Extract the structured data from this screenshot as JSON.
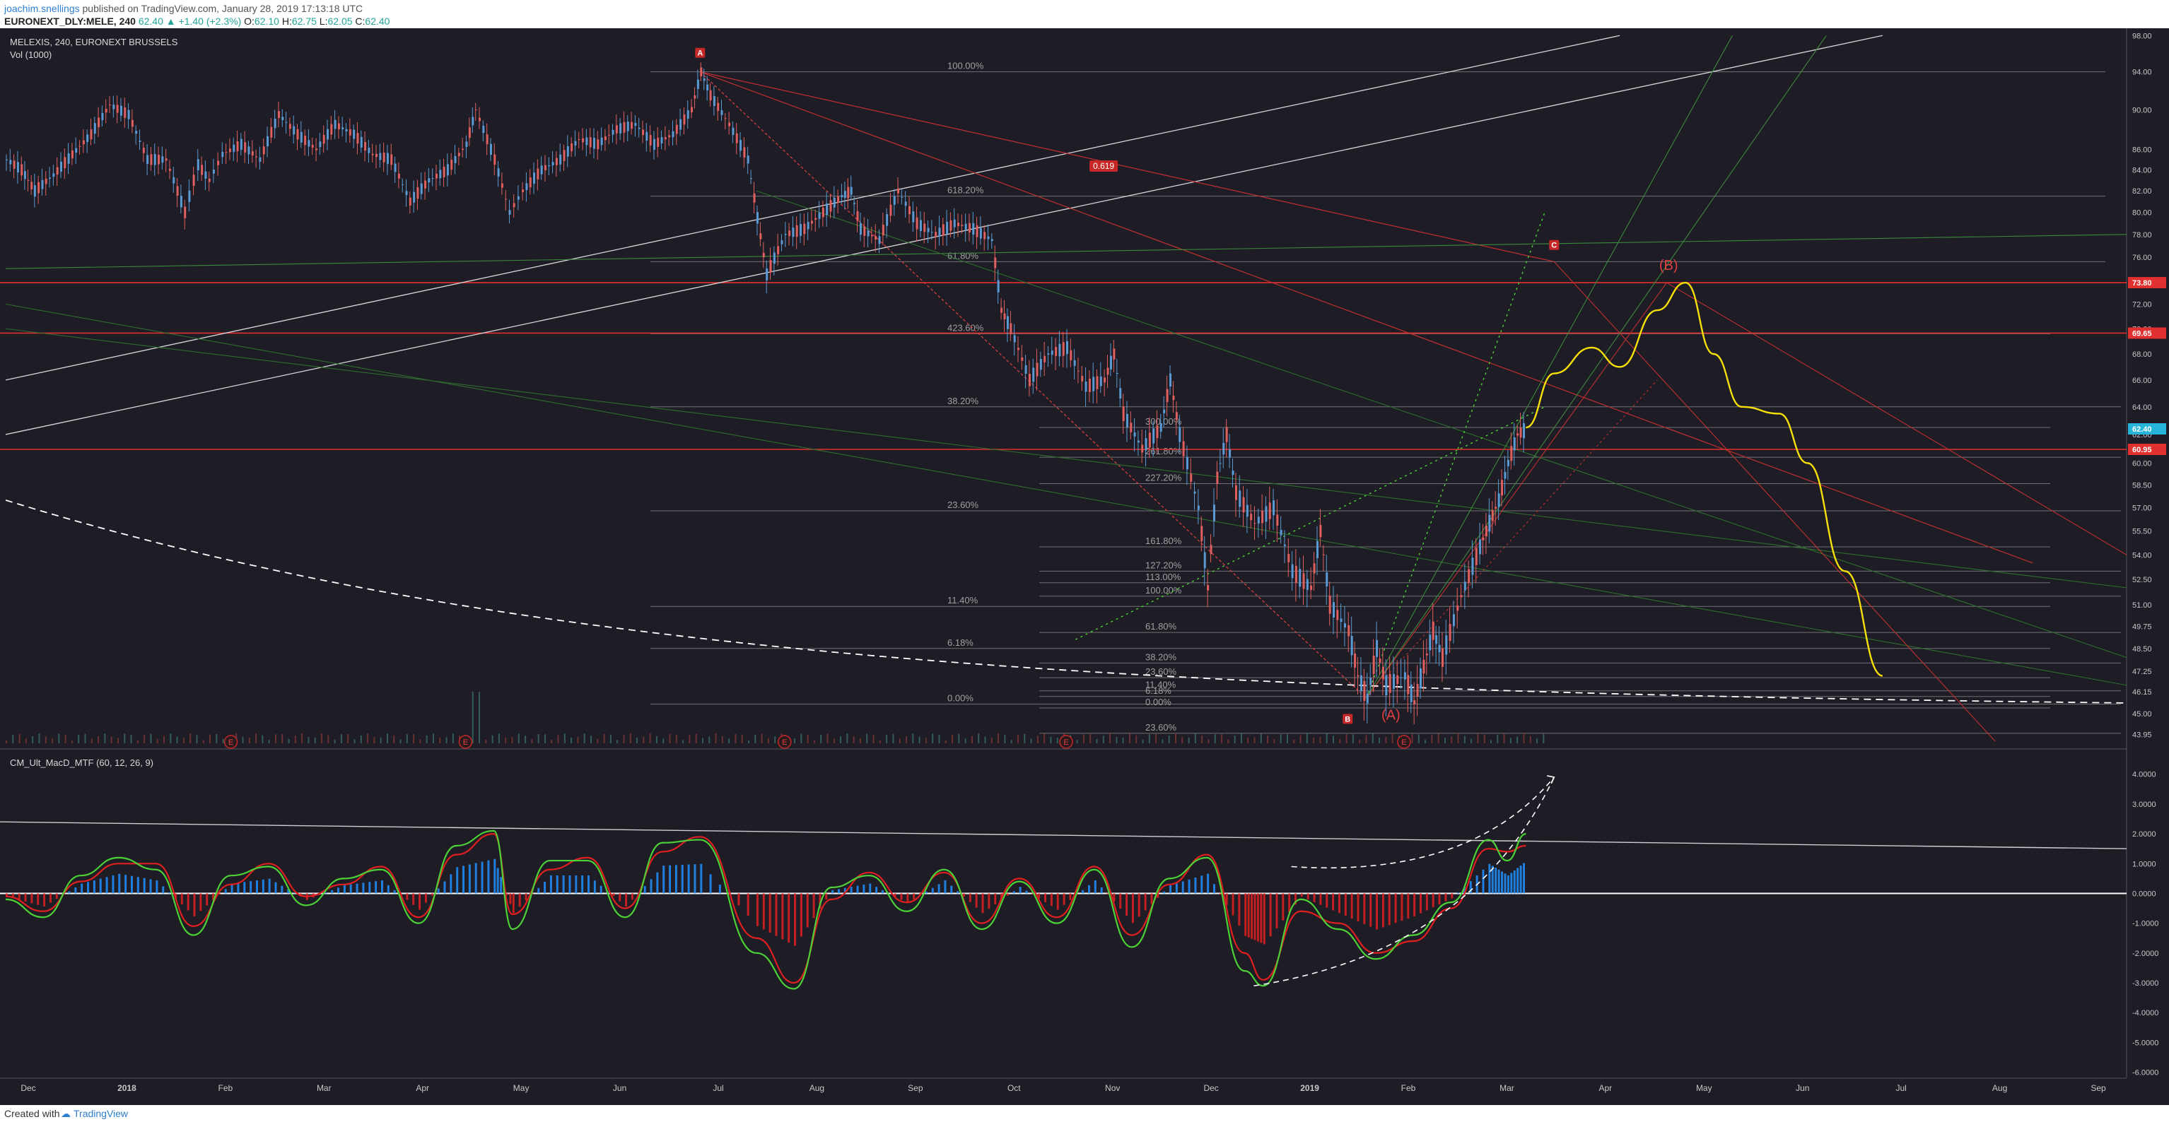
{
  "header": {
    "user": "joachim.snellings",
    "published": "published on TradingView.com, January 28, 2019 17:13:18 UTC",
    "symbol": "EURONEXT_DLY:MELE, 240",
    "last": "62.40",
    "change_arrow": "▲",
    "change": "+1.40 (+2.3%)",
    "o_label": "O:",
    "o": "62.10",
    "h_label": "H:",
    "h": "62.75",
    "l_label": "L:",
    "l": "62.05",
    "c_label": "C:",
    "c": "62.40"
  },
  "footer": {
    "created_with": "Created with",
    "brand": "TradingView"
  },
  "colors": {
    "background": "#1e1c25",
    "up": "#5b9bd5",
    "down": "#e06060",
    "grid_line": "#b8b8b8",
    "fib_label": "#a0a0a0",
    "red_level": "#e03030",
    "yellow_path": "#f5e00a",
    "green_fan": "#3c8a3c",
    "macd_green": "#4cd137",
    "macd_red": "#e02020",
    "hist_pos": "#1e90ff",
    "hist_neg": "#e02020"
  },
  "chart_data": [
    {
      "type": "candlestick",
      "title": "MELEXIS, 240, EURONEXT BRUSSELS",
      "subtitle": "Vol (1000)",
      "xlabel": "",
      "ylabel": "",
      "x_ticks": [
        "Dec",
        "2018",
        "Feb",
        "Mar",
        "Apr",
        "May",
        "Jun",
        "Jul",
        "Aug",
        "Sep",
        "Oct",
        "Nov",
        "Dec",
        "2019",
        "Feb",
        "Mar",
        "Apr",
        "May",
        "Jun",
        "Jul",
        "Aug",
        "Sep"
      ],
      "y_ticks": [
        "98.00",
        "94.00",
        "90.00",
        "86.00",
        "84.00",
        "82.00",
        "80.00",
        "78.00",
        "76.00",
        "74.00",
        "72.00",
        "70.00",
        "68.00",
        "66.00",
        "64.00",
        "62.00",
        "60.00",
        "58.50",
        "57.00",
        "55.50",
        "54.00",
        "52.50",
        "51.00",
        "49.75",
        "48.50",
        "47.25",
        "46.15",
        "45.00",
        "43.95"
      ],
      "ylim": [
        43.5,
        98.5
      ],
      "scale": "log",
      "price_path": [
        [
          0.0,
          85.0
        ],
        [
          0.8,
          84.0
        ],
        [
          1.5,
          82.0
        ],
        [
          2.5,
          83.5
        ],
        [
          3.5,
          85.5
        ],
        [
          4.5,
          87.5
        ],
        [
          5.5,
          90.5
        ],
        [
          6.5,
          89.5
        ],
        [
          7.5,
          85.0
        ],
        [
          8.5,
          85.0
        ],
        [
          9.5,
          80.0
        ],
        [
          10.2,
          84.5
        ],
        [
          10.8,
          83.0
        ],
        [
          11.5,
          85.5
        ],
        [
          12.5,
          86.5
        ],
        [
          13.5,
          85.0
        ],
        [
          14.5,
          89.5
        ],
        [
          15.5,
          87.5
        ],
        [
          16.5,
          86.0
        ],
        [
          17.5,
          88.5
        ],
        [
          18.5,
          87.5
        ],
        [
          19.5,
          85.5
        ],
        [
          20.5,
          85.0
        ],
        [
          21.5,
          81.0
        ],
        [
          22.5,
          83.0
        ],
        [
          23.5,
          84.0
        ],
        [
          24.5,
          86.5
        ],
        [
          25.0,
          90.0
        ],
        [
          26.0,
          85.0
        ],
        [
          26.8,
          80.0
        ],
        [
          27.5,
          82.0
        ],
        [
          28.5,
          84.0
        ],
        [
          29.5,
          85.0
        ],
        [
          30.5,
          87.0
        ],
        [
          31.5,
          86.5
        ],
        [
          32.5,
          88.0
        ],
        [
          33.5,
          88.5
        ],
        [
          34.5,
          86.5
        ],
        [
          35.5,
          87.5
        ],
        [
          36.5,
          90.0
        ],
        [
          37.0,
          94.0
        ],
        [
          37.5,
          91.5
        ],
        [
          38.5,
          88.5
        ],
        [
          39.5,
          85.0
        ],
        [
          40.0,
          79.5
        ],
        [
          40.5,
          74.5
        ],
        [
          41.5,
          78.0
        ],
        [
          42.5,
          78.5
        ],
        [
          43.5,
          80.0
        ],
        [
          44.5,
          81.5
        ],
        [
          45.0,
          82.0
        ],
        [
          45.5,
          78.5
        ],
        [
          46.5,
          77.5
        ],
        [
          47.5,
          82.0
        ],
        [
          48.5,
          79.0
        ],
        [
          49.5,
          78.0
        ],
        [
          50.5,
          79.0
        ],
        [
          51.5,
          78.5
        ],
        [
          52.5,
          77.5
        ],
        [
          53.0,
          71.5
        ],
        [
          53.5,
          70.0
        ],
        [
          54.5,
          66.0
        ],
        [
          55.5,
          68.0
        ],
        [
          56.5,
          68.5
        ],
        [
          57.5,
          65.5
        ],
        [
          58.5,
          66.0
        ],
        [
          59.0,
          68.0
        ],
        [
          59.5,
          63.5
        ],
        [
          60.5,
          61.0
        ],
        [
          61.5,
          62.5
        ],
        [
          62.0,
          66.0
        ],
        [
          62.5,
          62.0
        ],
        [
          63.5,
          57.0
        ],
        [
          64.0,
          52.0
        ],
        [
          64.5,
          59.0
        ],
        [
          65.0,
          62.0
        ],
        [
          65.5,
          58.0
        ],
        [
          66.5,
          56.0
        ],
        [
          67.5,
          57.0
        ],
        [
          68.5,
          53.0
        ],
        [
          69.5,
          52.0
        ],
        [
          70.0,
          55.5
        ],
        [
          70.5,
          51.0
        ],
        [
          71.5,
          49.5
        ],
        [
          72.0,
          47.0
        ],
        [
          72.5,
          45.8
        ],
        [
          73.0,
          48.5
        ],
        [
          73.5,
          46.5
        ],
        [
          74.5,
          47.0
        ],
        [
          75.0,
          45.6
        ],
        [
          75.5,
          47.5
        ],
        [
          76.0,
          49.5
        ],
        [
          76.5,
          48.0
        ],
        [
          77.5,
          51.5
        ],
        [
          78.5,
          54.5
        ],
        [
          79.0,
          56.0
        ],
        [
          79.5,
          57.5
        ],
        [
          80.0,
          60.0
        ],
        [
          80.5,
          62.0
        ],
        [
          81.0,
          62.4
        ]
      ],
      "fib_levels": [
        {
          "label": "100.00%",
          "price": 94.0
        },
        {
          "label": "618.20%",
          "price": 81.5
        },
        {
          "label": "61.80%",
          "price": 75.6
        },
        {
          "label": "423.60%",
          "price": 69.6
        },
        {
          "label": "38.20%",
          "price": 64.0
        },
        {
          "label": "300.00%",
          "price": 62.5
        },
        {
          "label": "261.80%",
          "price": 60.4
        },
        {
          "label": "227.20%",
          "price": 58.6
        },
        {
          "label": "23.60%",
          "price": 56.8
        },
        {
          "label": "161.80%",
          "price": 54.5
        },
        {
          "label": "127.20%",
          "price": 53.0
        },
        {
          "label": "113.00%",
          "price": 52.3
        },
        {
          "label": "100.00%",
          "price": 51.5
        },
        {
          "label": "11.40%",
          "price": 50.9
        },
        {
          "label": "61.80%",
          "price": 49.4
        },
        {
          "label": "6.18%",
          "price": 48.5
        },
        {
          "label": "38.20%",
          "price": 47.7
        },
        {
          "label": "23.60%",
          "price": 46.9
        },
        {
          "label": "11.40%",
          "price": 46.2
        },
        {
          "label": "6.18%",
          "price": 45.9
        },
        {
          "label": "0.00%",
          "price": 45.5
        },
        {
          "label": "0.00%",
          "price": 45.3
        },
        {
          "label": "23.60%",
          "price": 44.0
        }
      ],
      "red_levels": [
        73.8,
        69.65,
        60.95
      ],
      "price_badges": [
        {
          "text": "73.80",
          "price": 73.8,
          "color": "#e03030"
        },
        {
          "text": "69.65",
          "price": 69.65,
          "color": "#e03030"
        },
        {
          "text": "62.40",
          "price": 62.4,
          "color": "#26b5d8"
        },
        {
          "text": "60.95",
          "price": 60.95,
          "color": "#e03030"
        }
      ],
      "annotations": [
        {
          "text": "A",
          "type": "marker"
        },
        {
          "text": "B",
          "type": "marker"
        },
        {
          "text": "C",
          "type": "marker"
        },
        {
          "text": "0.619",
          "type": "badge"
        },
        {
          "text": "(A)",
          "type": "wave"
        },
        {
          "text": "(B)",
          "type": "wave"
        },
        {
          "text": "E",
          "type": "event"
        }
      ],
      "projection_path": [
        [
          81.0,
          62.5
        ],
        [
          82.5,
          66.5
        ],
        [
          84.5,
          68.5
        ],
        [
          86.0,
          67.0
        ],
        [
          88.0,
          71.5
        ],
        [
          89.5,
          73.8
        ],
        [
          91.0,
          68.0
        ],
        [
          92.5,
          64.0
        ],
        [
          94.5,
          63.5
        ],
        [
          96.0,
          60.0
        ],
        [
          98.0,
          53.0
        ],
        [
          100.0,
          47.0
        ]
      ]
    },
    {
      "type": "line",
      "title": "CM_Ult_MacD_MTF (60, 12, 26, 9)",
      "xlabel": "",
      "ylabel": "",
      "y_ticks": [
        "4.0000",
        "3.0000",
        "2.0000",
        "1.0000",
        "0.0000",
        "-1.0000",
        "-2.0000",
        "-3.0000",
        "-4.0000",
        "-5.0000",
        "-6.0000"
      ],
      "ylim": [
        -6.2,
        4.8
      ],
      "series": [
        {
          "values": [
            [
              0,
              -0.2
            ],
            [
              2,
              -0.8
            ],
            [
              4,
              0.6
            ],
            [
              6,
              1.2
            ],
            [
              8,
              0.8
            ],
            [
              10,
              -1.4
            ],
            [
              12,
              0.6
            ],
            [
              14,
              0.9
            ],
            [
              16,
              -0.4
            ],
            [
              18,
              0.5
            ],
            [
              20,
              0.8
            ],
            [
              22,
              -1.0
            ],
            [
              24,
              1.6
            ],
            [
              26,
              2.1
            ],
            [
              27,
              -1.2
            ],
            [
              29,
              1.1
            ],
            [
              31,
              1.1
            ],
            [
              33,
              -0.8
            ],
            [
              35,
              1.7
            ],
            [
              37,
              1.8
            ],
            [
              40,
              -2.0
            ],
            [
              42,
              -3.2
            ],
            [
              44,
              0.2
            ],
            [
              46,
              0.6
            ],
            [
              48,
              -0.6
            ],
            [
              50,
              0.8
            ],
            [
              52,
              -1.2
            ],
            [
              54,
              0.4
            ],
            [
              56,
              -1.0
            ],
            [
              58,
              0.8
            ],
            [
              60,
              -1.8
            ],
            [
              62,
              0.5
            ],
            [
              64,
              1.2
            ],
            [
              66,
              -2.6
            ],
            [
              67,
              -3.1
            ],
            [
              69,
              -0.2
            ],
            [
              71,
              -1.2
            ],
            [
              73,
              -2.2
            ],
            [
              75,
              -1.4
            ],
            [
              77,
              -0.3
            ],
            [
              79,
              1.8
            ],
            [
              80,
              1.1
            ],
            [
              81,
              2.0
            ]
          ]
        },
        {
          "values": [
            [
              0,
              -0.1
            ],
            [
              2,
              -0.6
            ],
            [
              4,
              0.4
            ],
            [
              6,
              1.0
            ],
            [
              8,
              1.0
            ],
            [
              10,
              -1.1
            ],
            [
              12,
              0.3
            ],
            [
              14,
              1.0
            ],
            [
              16,
              -0.1
            ],
            [
              18,
              0.3
            ],
            [
              20,
              0.9
            ],
            [
              22,
              -0.8
            ],
            [
              24,
              1.3
            ],
            [
              26,
              2.0
            ],
            [
              27,
              -0.7
            ],
            [
              29,
              0.8
            ],
            [
              31,
              1.2
            ],
            [
              33,
              -0.5
            ],
            [
              35,
              1.4
            ],
            [
              37,
              1.9
            ],
            [
              40,
              -1.5
            ],
            [
              42,
              -3.0
            ],
            [
              44,
              -0.2
            ],
            [
              46,
              0.7
            ],
            [
              48,
              -0.3
            ],
            [
              50,
              0.7
            ],
            [
              52,
              -1.0
            ],
            [
              54,
              0.5
            ],
            [
              56,
              -0.8
            ],
            [
              58,
              0.9
            ],
            [
              60,
              -1.4
            ],
            [
              62,
              0.3
            ],
            [
              64,
              1.3
            ],
            [
              66,
              -2.0
            ],
            [
              67,
              -2.9
            ],
            [
              69,
              -0.6
            ],
            [
              71,
              -1.0
            ],
            [
              73,
              -2.0
            ],
            [
              75,
              -1.6
            ],
            [
              77,
              -0.5
            ],
            [
              79,
              1.5
            ],
            [
              80,
              1.4
            ],
            [
              81,
              1.6
            ]
          ]
        }
      ]
    }
  ]
}
